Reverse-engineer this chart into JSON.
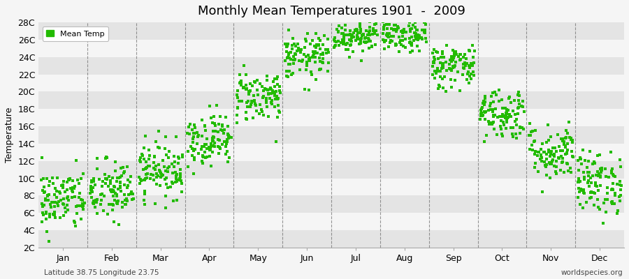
{
  "title": "Monthly Mean Temperatures 1901  -  2009",
  "ylabel": "Temperature",
  "xlabel_labels": [
    "Jan",
    "Feb",
    "Mar",
    "Apr",
    "May",
    "Jun",
    "Jul",
    "Aug",
    "Sep",
    "Oct",
    "Nov",
    "Dec"
  ],
  "ytick_labels": [
    "2C",
    "4C",
    "6C",
    "8C",
    "10C",
    "12C",
    "14C",
    "16C",
    "18C",
    "20C",
    "22C",
    "24C",
    "26C",
    "28C"
  ],
  "ytick_values": [
    2,
    4,
    6,
    8,
    10,
    12,
    14,
    16,
    18,
    20,
    22,
    24,
    26,
    28
  ],
  "ylim": [
    2,
    28
  ],
  "dot_color": "#22BB00",
  "dot_size": 5,
  "background_color": "#f5f5f5",
  "band_color_dark": "#e4e4e4",
  "band_color_light": "#f5f5f5",
  "vline_color": "#555555",
  "legend_label": "Mean Temp",
  "footer_left": "Latitude 38.75 Longitude 23.75",
  "footer_right": "worldspecies.org",
  "monthly_means": [
    7.5,
    8.5,
    11.0,
    14.5,
    19.5,
    24.0,
    26.5,
    26.5,
    23.0,
    17.5,
    13.0,
    9.5
  ],
  "monthly_stds": [
    1.8,
    1.8,
    1.6,
    1.5,
    1.5,
    1.3,
    1.0,
    1.0,
    1.3,
    1.5,
    1.6,
    1.8
  ],
  "n_years": 109,
  "seed": 42
}
